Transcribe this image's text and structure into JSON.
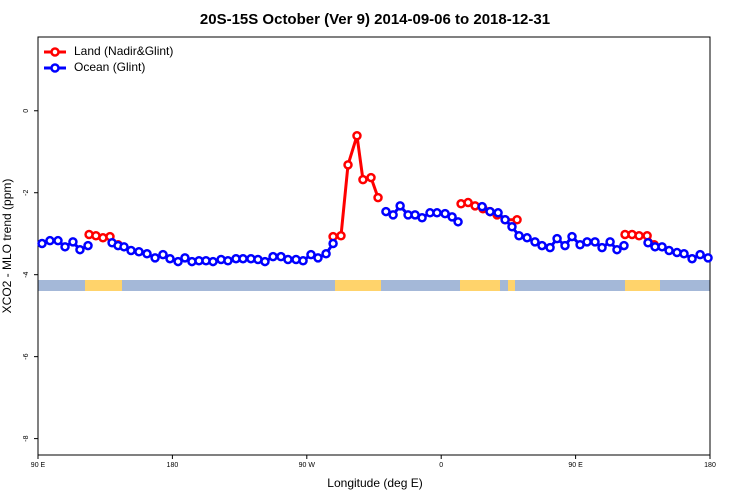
{
  "chart_data": {
    "type": "line",
    "title": "20S-15S October (Ver 9)   2014-09-06 to 2018-12-31",
    "x_label": "Longitude (deg E)",
    "y_label": "XCO2 - MLO trend (ppm)",
    "xlim": [
      90,
      540
    ],
    "xticks": [
      {
        "value": 90,
        "label": "90 E"
      },
      180,
      {
        "value": 270,
        "label": "90 W"
      },
      {
        "value": 360,
        "label": "0"
      },
      {
        "value": 450,
        "label": "90 E"
      },
      {
        "value": 540,
        "label": "180"
      }
    ],
    "ylim": [
      -8.4,
      1.8
    ],
    "yticks": [
      -8,
      -6,
      -4,
      -2,
      0
    ],
    "legend": "topleft",
    "series": [
      {
        "name": "Land (Nadir&Glint)",
        "color": "#ff0000",
        "x": [
          124.2,
          128.8,
          133.5,
          138.2,
          143.6,
          null,
          287.6,
          292.9,
          297.6,
          303.6,
          307.6,
          313.0,
          317.7,
          null,
          373.3,
          378.0,
          382.7,
          388.0,
          392.7,
          397.4,
          402.8,
          410.8,
          null,
          483.1,
          487.8,
          492.5,
          497.9,
          502.6
        ],
        "values": [
          -3.02,
          -3.05,
          -3.1,
          -3.07,
          -3.27,
          null,
          -3.07,
          -3.05,
          -1.32,
          -0.61,
          -1.68,
          -1.63,
          -2.12,
          null,
          -2.27,
          -2.24,
          -2.32,
          -2.39,
          -2.46,
          -2.54,
          -2.66,
          -2.66,
          null,
          -3.02,
          -3.02,
          -3.05,
          -3.05,
          -3.27
        ]
      },
      {
        "name": "Ocean (Glint)",
        "color": "#0000ff",
        "x": [
          92.7,
          98.0,
          103.4,
          108.1,
          113.4,
          118.1,
          123.5,
          null,
          139.6,
          143.6,
          147.6,
          152.3,
          157.6,
          163.0,
          168.4,
          173.7,
          178.4,
          183.8,
          188.4,
          193.1,
          197.8,
          202.5,
          207.2,
          212.6,
          217.2,
          222.6,
          227.3,
          232.6,
          237.3,
          242.0,
          247.4,
          252.7,
          257.4,
          262.8,
          267.5,
          272.8,
          277.5,
          282.9,
          287.6,
          null,
          323.0,
          327.8,
          332.5,
          337.8,
          342.5,
          347.2,
          352.5,
          357.2,
          362.6,
          367.3,
          371.3,
          null,
          387.4,
          392.7,
          398.1,
          402.8,
          407.4,
          412.1,
          417.5,
          422.8,
          427.5,
          432.9,
          437.6,
          442.9,
          447.6,
          453.0,
          457.7,
          463.0,
          467.7,
          473.1,
          477.7,
          482.4,
          null,
          498.5,
          503.2,
          507.9,
          512.6,
          517.9,
          522.6,
          528.0,
          533.4,
          538.7
        ],
        "values": [
          -3.24,
          -3.17,
          -3.17,
          -3.32,
          -3.2,
          -3.39,
          -3.29,
          null,
          -3.22,
          -3.29,
          -3.32,
          -3.41,
          -3.44,
          -3.49,
          -3.59,
          -3.51,
          -3.61,
          -3.68,
          -3.59,
          -3.68,
          -3.66,
          -3.66,
          -3.68,
          -3.63,
          -3.66,
          -3.61,
          -3.61,
          -3.61,
          -3.63,
          -3.68,
          -3.56,
          -3.56,
          -3.63,
          -3.63,
          -3.66,
          -3.51,
          -3.59,
          -3.49,
          -3.24,
          null,
          -2.46,
          -2.54,
          -2.32,
          -2.54,
          -2.54,
          -2.61,
          -2.49,
          -2.49,
          -2.51,
          -2.59,
          -2.71,
          null,
          -2.34,
          -2.46,
          -2.49,
          -2.66,
          -2.83,
          -3.05,
          -3.1,
          -3.2,
          -3.29,
          -3.34,
          -3.12,
          -3.29,
          -3.07,
          -3.27,
          -3.2,
          -3.2,
          -3.34,
          -3.2,
          -3.39,
          -3.29,
          null,
          -3.22,
          -3.32,
          -3.32,
          -3.41,
          -3.46,
          -3.49,
          -3.61,
          -3.51,
          -3.59
        ]
      }
    ]
  }
}
